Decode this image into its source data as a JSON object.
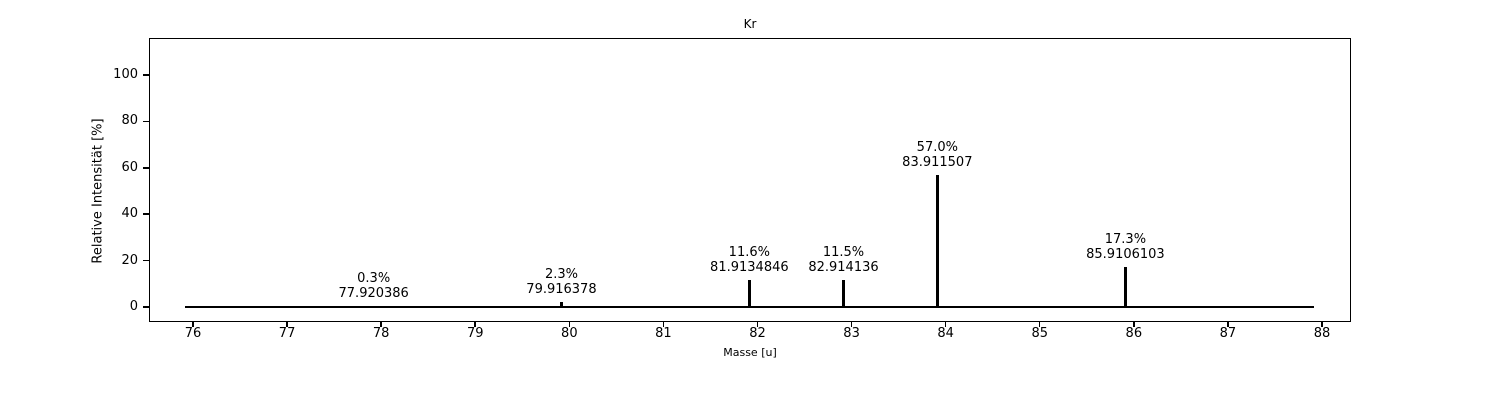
{
  "chart_data": {
    "type": "bar",
    "subtype": "mass-spectrum-stem",
    "title": "Kr",
    "xlabel": "Masse [u]",
    "ylabel": "Relative Intensität [%]",
    "xlim": [
      75.54,
      88.3
    ],
    "ylim": [
      -6,
      115.5
    ],
    "x_ticks": [
      76,
      77,
      78,
      79,
      80,
      81,
      82,
      83,
      84,
      85,
      86,
      87,
      88
    ],
    "y_ticks": [
      0,
      20,
      40,
      60,
      80,
      100
    ],
    "grid": false,
    "legend": "none",
    "line_color": "#000000",
    "background_color": "#ffffff",
    "baseline": {
      "y": 0,
      "x_start": 75.92,
      "x_end": 87.91
    },
    "points": [
      {
        "mass": 77.920386,
        "intensity_pct": 0.3,
        "percent_label": "0.3%",
        "mass_label": "77.920386"
      },
      {
        "mass": 79.916378,
        "intensity_pct": 2.3,
        "percent_label": "2.3%",
        "mass_label": "79.916378"
      },
      {
        "mass": 81.9134846,
        "intensity_pct": 11.6,
        "percent_label": "11.6%",
        "mass_label": "81.9134846"
      },
      {
        "mass": 82.914136,
        "intensity_pct": 11.5,
        "percent_label": "11.5%",
        "mass_label": "82.914136"
      },
      {
        "mass": 83.911507,
        "intensity_pct": 57.0,
        "percent_label": "57.0%",
        "mass_label": "83.911507"
      },
      {
        "mass": 85.9106103,
        "intensity_pct": 17.3,
        "percent_label": "17.3%",
        "mass_label": "85.9106103"
      }
    ]
  }
}
